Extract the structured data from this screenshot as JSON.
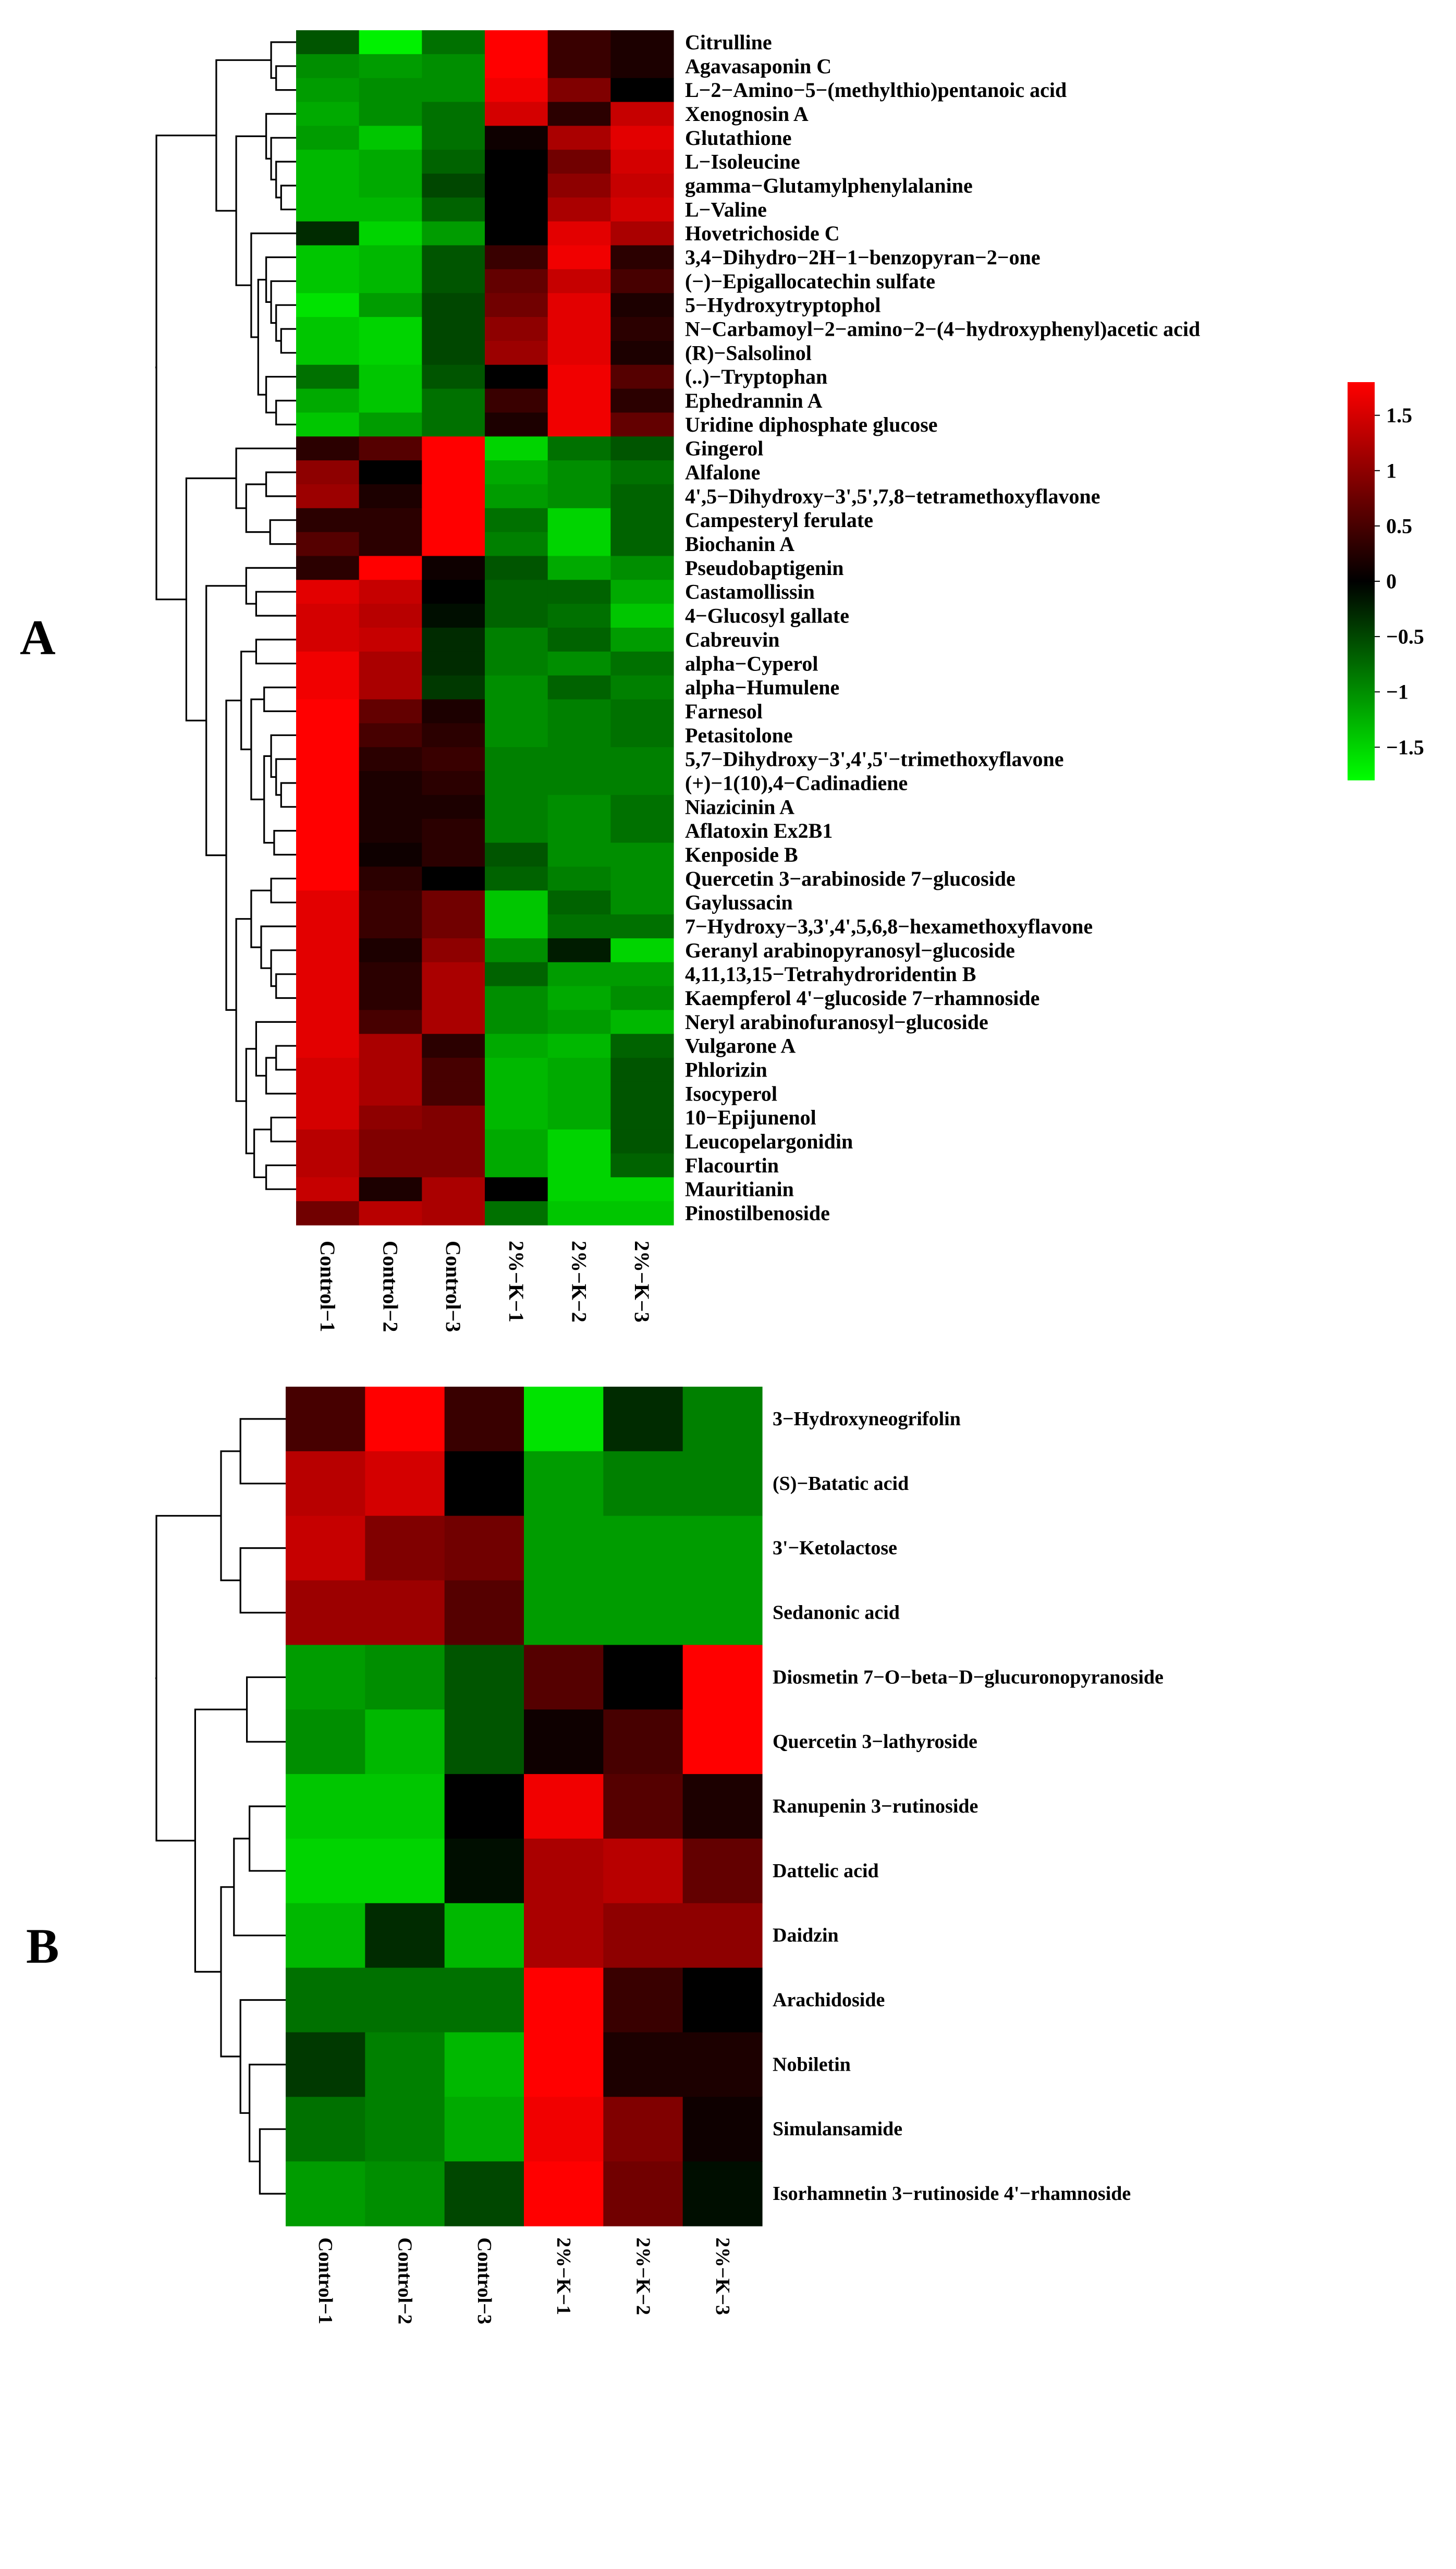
{
  "chart_data": [
    {
      "type": "heatmap",
      "panel_label": "A",
      "columns": [
        "Control−1",
        "Control−2",
        "Control−3",
        "2%−K−1",
        "2%−K−2",
        "2%−K−3"
      ],
      "colorbar": {
        "range": [
          -1.8,
          1.8
        ],
        "ticks": [
          "1.5",
          "1",
          "0.5",
          "0",
          "−0.5",
          "−1",
          "−1.5"
        ],
        "tick_values": [
          1.5,
          1,
          0.5,
          0,
          -0.5,
          -1,
          -1.5
        ]
      },
      "rows": [
        {
          "name": "Citrulline",
          "values": [
            -0.6,
            -1.7,
            -0.8,
            1.8,
            0.4,
            0.2
          ]
        },
        {
          "name": "Agavasaponin C",
          "values": [
            -1.0,
            -1.1,
            -1.0,
            1.8,
            0.4,
            0.2
          ]
        },
        {
          "name": "L−2−Amino−5−(methylthio)pentanoic acid",
          "values": [
            -1.1,
            -1.0,
            -1.0,
            1.7,
            0.9,
            0.0
          ]
        },
        {
          "name": "Xenognosin A",
          "values": [
            -1.2,
            -1.0,
            -0.8,
            1.5,
            0.3,
            1.4
          ]
        },
        {
          "name": "Glutathione",
          "values": [
            -1.1,
            -1.4,
            -0.8,
            0.1,
            1.2,
            1.6
          ]
        },
        {
          "name": "L−Isoleucine",
          "values": [
            -1.3,
            -1.2,
            -0.7,
            0.0,
            0.8,
            1.5
          ]
        },
        {
          "name": "gamma−Glutamylphenylalanine",
          "values": [
            -1.3,
            -1.2,
            -0.5,
            0.0,
            1.0,
            1.4
          ]
        },
        {
          "name": "L−Valine",
          "values": [
            -1.3,
            -1.3,
            -0.7,
            0.0,
            1.2,
            1.5
          ]
        },
        {
          "name": "Hovetrichoside C",
          "values": [
            -0.3,
            -1.5,
            -1.1,
            0.0,
            1.6,
            1.2
          ]
        },
        {
          "name": "3,4−Dihydro−2H−1−benzopyran−2−one",
          "values": [
            -1.4,
            -1.3,
            -0.6,
            0.4,
            1.7,
            0.3
          ]
        },
        {
          "name": "(−)−Epigallocatechin sulfate",
          "values": [
            -1.4,
            -1.3,
            -0.6,
            0.7,
            1.4,
            0.5
          ]
        },
        {
          "name": "5−Hydroxytryptophol",
          "values": [
            -1.6,
            -1.1,
            -0.5,
            0.8,
            1.6,
            0.2
          ]
        },
        {
          "name": "N−Carbamoyl−2−amino−2−(4−hydroxyphenyl)acetic acid",
          "values": [
            -1.4,
            -1.5,
            -0.5,
            1.0,
            1.6,
            0.3
          ]
        },
        {
          "name": "(R)−Salsolinol",
          "values": [
            -1.4,
            -1.5,
            -0.5,
            1.1,
            1.6,
            0.2
          ]
        },
        {
          "name": "(..)−Tryptophan",
          "values": [
            -0.8,
            -1.4,
            -0.6,
            0.0,
            1.7,
            0.6
          ]
        },
        {
          "name": "Ephedrannin A",
          "values": [
            -1.2,
            -1.4,
            -0.8,
            0.4,
            1.7,
            0.3
          ]
        },
        {
          "name": "Uridine diphosphate glucose",
          "values": [
            -1.4,
            -1.1,
            -0.8,
            0.2,
            1.7,
            0.7
          ]
        },
        {
          "name": "Gingerol",
          "values": [
            0.3,
            0.6,
            1.8,
            -1.5,
            -0.8,
            -0.6
          ]
        },
        {
          "name": "Alfalone",
          "values": [
            1.0,
            0.0,
            1.8,
            -1.2,
            -1.0,
            -0.8
          ]
        },
        {
          "name": "4',5−Dihydroxy−3',5',7,8−tetramethoxyflavone",
          "values": [
            1.1,
            0.2,
            1.8,
            -1.1,
            -1.0,
            -0.7
          ]
        },
        {
          "name": "Campesteryl ferulate",
          "values": [
            0.3,
            0.3,
            1.8,
            -0.8,
            -1.5,
            -0.7
          ]
        },
        {
          "name": "Biochanin A",
          "values": [
            0.6,
            0.3,
            1.8,
            -0.9,
            -1.5,
            -0.7
          ]
        },
        {
          "name": "Pseudobaptigenin",
          "values": [
            0.3,
            1.8,
            0.1,
            -0.6,
            -1.2,
            -1.0
          ]
        },
        {
          "name": "Castamollissin",
          "values": [
            1.6,
            1.4,
            0.0,
            -0.7,
            -0.7,
            -1.2
          ]
        },
        {
          "name": "4−Glucosyl gallate",
          "values": [
            1.5,
            1.3,
            -0.1,
            -0.7,
            -0.8,
            -1.4
          ]
        },
        {
          "name": "Cabreuvin",
          "values": [
            1.5,
            1.4,
            -0.3,
            -0.9,
            -0.7,
            -1.1
          ]
        },
        {
          "name": "alpha−Cyperol",
          "values": [
            1.7,
            1.2,
            -0.3,
            -0.9,
            -1.0,
            -0.8
          ]
        },
        {
          "name": "alpha−Humulene",
          "values": [
            1.7,
            1.2,
            -0.4,
            -1.0,
            -0.7,
            -0.9
          ]
        },
        {
          "name": "Farnesol",
          "values": [
            1.8,
            0.7,
            0.2,
            -1.0,
            -0.9,
            -0.8
          ]
        },
        {
          "name": "Petasitolone",
          "values": [
            1.8,
            0.5,
            0.3,
            -1.0,
            -0.9,
            -0.8
          ]
        },
        {
          "name": "5,7−Dihydroxy−3',4',5'−trimethoxyflavone",
          "values": [
            1.8,
            0.3,
            0.4,
            -0.9,
            -0.9,
            -0.9
          ]
        },
        {
          "name": "(+)−1(10),4−Cadinadiene",
          "values": [
            1.8,
            0.2,
            0.3,
            -0.9,
            -0.9,
            -0.9
          ]
        },
        {
          "name": "Niazicinin A",
          "values": [
            1.8,
            0.2,
            0.2,
            -0.9,
            -1.0,
            -0.8
          ]
        },
        {
          "name": "Aflatoxin Ex2B1",
          "values": [
            1.8,
            0.2,
            0.3,
            -0.9,
            -1.0,
            -0.8
          ]
        },
        {
          "name": "Kenposide B",
          "values": [
            1.8,
            0.1,
            0.3,
            -0.6,
            -1.0,
            -1.0
          ]
        },
        {
          "name": "Quercetin 3−arabinoside 7−glucoside",
          "values": [
            1.8,
            0.3,
            0.0,
            -0.7,
            -0.9,
            -1.0
          ]
        },
        {
          "name": "Gaylussacin",
          "values": [
            1.6,
            0.4,
            0.8,
            -1.4,
            -0.7,
            -1.0
          ]
        },
        {
          "name": "7−Hydroxy−3,3',4',5,6,8−hexamethoxyflavone",
          "values": [
            1.6,
            0.4,
            0.8,
            -1.4,
            -0.8,
            -0.8
          ]
        },
        {
          "name": "Geranyl arabinopyranosyl−glucoside",
          "values": [
            1.6,
            0.2,
            1.0,
            -1.0,
            -0.2,
            -1.5
          ]
        },
        {
          "name": "4,11,13,15−Tetrahydroridentin B",
          "values": [
            1.6,
            0.3,
            1.2,
            -0.7,
            -1.1,
            -1.1
          ]
        },
        {
          "name": "Kaempferol 4'−glucoside 7−rhamnoside",
          "values": [
            1.6,
            0.3,
            1.2,
            -1.0,
            -1.2,
            -1.0
          ]
        },
        {
          "name": "Neryl arabinofuranosyl−glucoside",
          "values": [
            1.6,
            0.5,
            1.2,
            -1.0,
            -1.1,
            -1.3
          ]
        },
        {
          "name": "Vulgarone A",
          "values": [
            1.6,
            1.2,
            0.3,
            -1.2,
            -1.3,
            -0.7
          ]
        },
        {
          "name": "Phlorizin",
          "values": [
            1.5,
            1.2,
            0.5,
            -1.3,
            -1.2,
            -0.6
          ]
        },
        {
          "name": "Isocyperol",
          "values": [
            1.5,
            1.2,
            0.5,
            -1.3,
            -1.2,
            -0.6
          ]
        },
        {
          "name": "10−Epijunenol",
          "values": [
            1.5,
            1.0,
            0.9,
            -1.3,
            -1.2,
            -0.6
          ]
        },
        {
          "name": "Leucopelargonidin",
          "values": [
            1.3,
            0.9,
            0.9,
            -1.2,
            -1.5,
            -0.6
          ]
        },
        {
          "name": "Flacourtin",
          "values": [
            1.3,
            0.9,
            0.9,
            -1.2,
            -1.5,
            -0.7
          ]
        },
        {
          "name": "Mauritianin",
          "values": [
            1.4,
            0.2,
            1.2,
            0.0,
            -1.5,
            -1.5
          ]
        },
        {
          "name": "Pinostilbenoside",
          "values": [
            0.8,
            1.3,
            1.2,
            -0.8,
            -1.4,
            -1.4
          ]
        }
      ]
    },
    {
      "type": "heatmap",
      "panel_label": "B",
      "columns": [
        "Control−1",
        "Control−2",
        "Control−3",
        "2%−K−1",
        "2%−K−2",
        "2%−K−3"
      ],
      "rows": [
        {
          "name": "3−Hydroxyneogrifolin",
          "values": [
            0.5,
            1.8,
            0.4,
            -1.6,
            -0.3,
            -0.9
          ]
        },
        {
          "name": "(S)−Batatic acid",
          "values": [
            1.3,
            1.5,
            0.0,
            -1.1,
            -0.9,
            -0.9
          ]
        },
        {
          "name": "3'−Ketolactose",
          "values": [
            1.4,
            0.9,
            0.8,
            -1.1,
            -1.1,
            -1.1
          ]
        },
        {
          "name": "Sedanonic acid",
          "values": [
            1.1,
            1.1,
            0.6,
            -1.1,
            -1.1,
            -1.1
          ]
        },
        {
          "name": "Diosmetin 7−O−beta−D−glucuronopyranoside",
          "values": [
            -1.1,
            -1.0,
            -0.6,
            0.6,
            0.0,
            1.8
          ]
        },
        {
          "name": "Quercetin 3−lathyroside",
          "values": [
            -1.0,
            -1.3,
            -0.6,
            0.1,
            0.5,
            1.8
          ]
        },
        {
          "name": "Ranupenin 3−rutinoside",
          "values": [
            -1.4,
            -1.4,
            0.0,
            1.7,
            0.6,
            0.2
          ]
        },
        {
          "name": "Dattelic acid",
          "values": [
            -1.5,
            -1.5,
            -0.1,
            1.2,
            1.3,
            0.7
          ]
        },
        {
          "name": "Daidzin",
          "values": [
            -1.3,
            -0.3,
            -1.3,
            1.2,
            1.0,
            1.0
          ]
        },
        {
          "name": "Arachidoside",
          "values": [
            -0.8,
            -0.8,
            -0.8,
            1.8,
            0.4,
            0.0
          ]
        },
        {
          "name": "Nobiletin",
          "values": [
            -0.4,
            -0.9,
            -1.3,
            1.8,
            0.2,
            0.2
          ]
        },
        {
          "name": "Simulansamide",
          "values": [
            -0.8,
            -0.9,
            -1.2,
            1.7,
            0.9,
            0.1
          ]
        },
        {
          "name": "Isorhamnetin 3−rutinoside 4'−rhamnoside",
          "values": [
            -1.1,
            -1.0,
            -0.5,
            1.8,
            0.8,
            -0.1
          ]
        }
      ]
    }
  ]
}
